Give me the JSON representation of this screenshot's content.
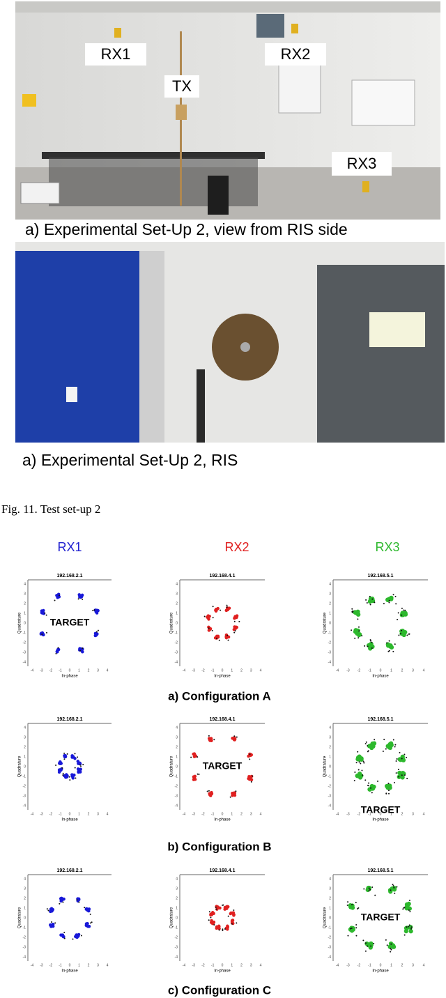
{
  "photo_1": {
    "labels": [
      "RX1",
      "TX",
      "RX2",
      "RX3"
    ],
    "caption": "a) Experimental Set-Up 2, view from RIS side"
  },
  "photo_2": {
    "caption": "a) Experimental Set-Up 2, RIS"
  },
  "figure_caption": "Fig. 11. Test set-up 2",
  "columns": [
    "RX1",
    "RX2",
    "RX3"
  ],
  "axis_labels": {
    "x": "In-phase",
    "y": "Quadrature"
  },
  "axis_ticks": [
    -4,
    -3,
    -2,
    -1,
    0,
    1,
    2,
    3,
    4
  ],
  "configurations": [
    {
      "caption": "a) Configuration A",
      "plots": [
        {
          "title": "192.168.2.1",
          "target": "TARGET"
        },
        {
          "title": "192.168.4.1"
        },
        {
          "title": "192.168.5.1"
        }
      ]
    },
    {
      "caption": "b) Configuration B",
      "plots": [
        {
          "title": "192.168.2.1"
        },
        {
          "title": "192.168.4.1",
          "target": "TARGET"
        },
        {
          "title": "192.168.5.1",
          "target": "TARGET"
        }
      ]
    },
    {
      "caption": "c) Configuration C",
      "plots": [
        {
          "title": "192.168.2.1"
        },
        {
          "title": "192.168.4.1"
        },
        {
          "title": "192.168.5.1",
          "target": "TARGET"
        }
      ]
    }
  ]
}
